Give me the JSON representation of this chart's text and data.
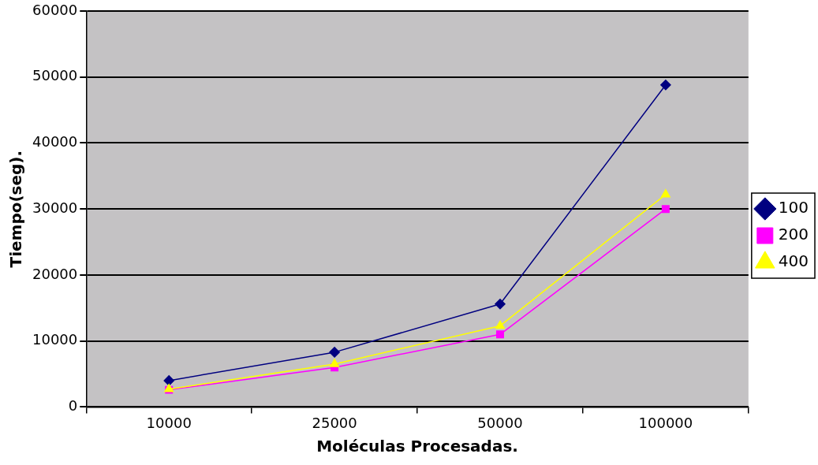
{
  "chart_data": {
    "type": "line",
    "xlabel": "Moléculas Procesadas.",
    "ylabel": "Tiempo(seg).",
    "categories": [
      "10000",
      "25000",
      "50000",
      "100000"
    ],
    "series": [
      {
        "name": "100",
        "color": "#000080",
        "marker": "diamond",
        "values": [
          4000,
          8300,
          15600,
          48800
        ]
      },
      {
        "name": "200",
        "color": "#ff00ff",
        "marker": "square",
        "values": [
          2600,
          6000,
          11000,
          30000
        ]
      },
      {
        "name": "400",
        "color": "#ffff00",
        "marker": "triangle",
        "values": [
          2700,
          6500,
          12300,
          32200
        ]
      }
    ],
    "ylim": [
      0,
      60000
    ],
    "yticks": [
      0,
      10000,
      20000,
      30000,
      40000,
      50000,
      60000
    ],
    "grid": "y",
    "legend": "right"
  }
}
